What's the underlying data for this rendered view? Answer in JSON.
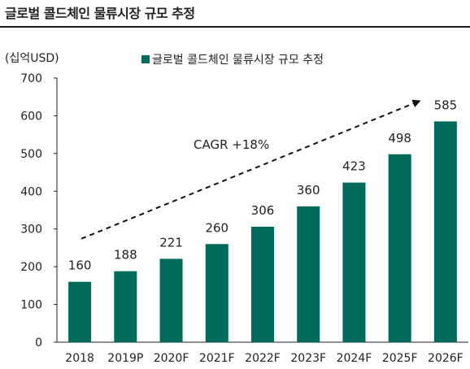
{
  "title": "글로벌 콜드체인 물류시장 규모 추정",
  "colors": {
    "bar": "#006b5a",
    "text": "#222222",
    "axis": "#222222"
  },
  "chart_data": {
    "type": "bar",
    "title": "글로벌 콜드체인 물류시장 규모 추정",
    "unit_label": "(십억USD)",
    "xlabel": "",
    "ylabel": "",
    "categories": [
      "2018",
      "2019P",
      "2020F",
      "2021F",
      "2022F",
      "2023F",
      "2024F",
      "2025F",
      "2026F"
    ],
    "series": [
      {
        "name": "글로벌 콜드체인 물류시장 규모 추정",
        "values": [
          160,
          188,
          221,
          260,
          306,
          360,
          423,
          498,
          585
        ]
      }
    ],
    "ylim": [
      0,
      700
    ],
    "yticks": [
      0,
      100,
      200,
      300,
      400,
      500,
      600,
      700
    ],
    "grid": false,
    "legend_position": "top",
    "annotation": {
      "text": "CAGR +18%",
      "arrow": "dashed, rising from 2018 bar to 2025F bar"
    }
  }
}
